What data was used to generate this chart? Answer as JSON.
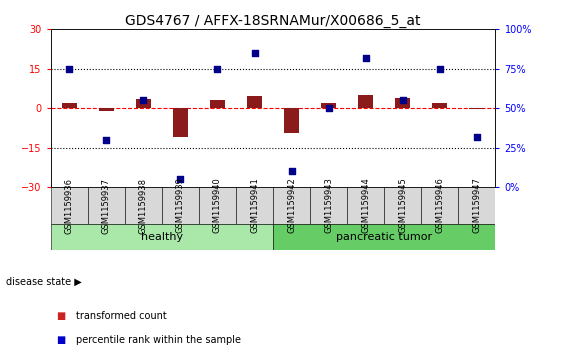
{
  "title": "GDS4767 / AFFX-18SRNAMur/X00686_5_at",
  "samples": [
    "GSM1159936",
    "GSM1159937",
    "GSM1159938",
    "GSM1159939",
    "GSM1159940",
    "GSM1159941",
    "GSM1159942",
    "GSM1159943",
    "GSM1159944",
    "GSM1159945",
    "GSM1159946",
    "GSM1159947"
  ],
  "transformed_count": [
    2.0,
    -1.0,
    3.5,
    -11.0,
    3.0,
    4.5,
    -9.5,
    2.0,
    5.0,
    4.0,
    2.0,
    -0.5
  ],
  "percentile_rank": [
    75,
    30,
    55,
    5,
    75,
    85,
    10,
    50,
    82,
    55,
    75,
    32
  ],
  "group_labels": [
    "healthy",
    "pancreatic tumor"
  ],
  "group_starts": [
    0,
    6
  ],
  "group_ends": [
    6,
    12
  ],
  "group_colors": [
    "#aae8aa",
    "#66cc66"
  ],
  "ylim_left": [
    -30,
    30
  ],
  "ylim_right": [
    0,
    100
  ],
  "yticks_left": [
    -30,
    -15,
    0,
    15,
    30
  ],
  "yticks_right": [
    0,
    25,
    50,
    75,
    100
  ],
  "hlines": [
    15,
    -15
  ],
  "bar_color": "#8B1A1A",
  "dot_color": "#00008B",
  "dot_size": 25,
  "legend_items": [
    "transformed count",
    "percentile rank within the sample"
  ],
  "legend_colors": [
    "#cc2222",
    "#0000cc"
  ],
  "disease_state_label": "disease state",
  "title_fontsize": 10,
  "tick_fontsize": 7,
  "sample_fontsize": 6,
  "group_fontsize": 8,
  "legend_fontsize": 7
}
